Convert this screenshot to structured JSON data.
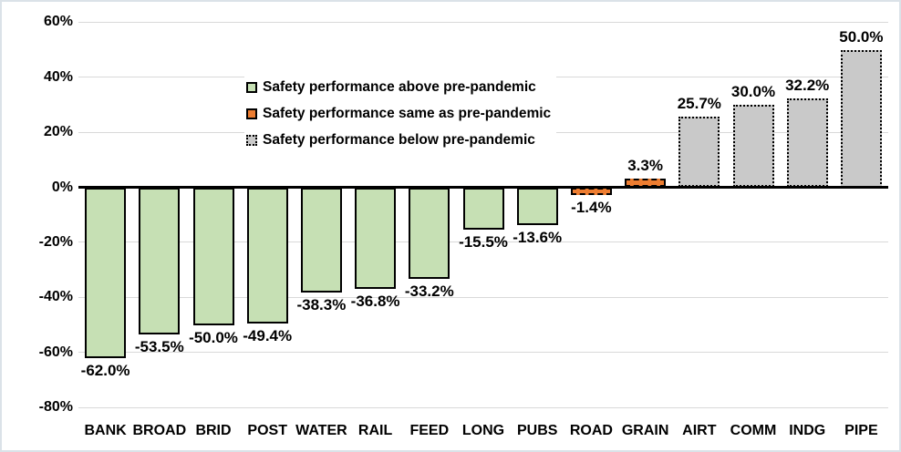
{
  "chart_data": {
    "type": "bar",
    "categories": [
      "BANK",
      "BROAD",
      "BRID",
      "POST",
      "WATER",
      "RAIL",
      "FEED",
      "LONG",
      "PUBS",
      "ROAD",
      "GRAIN",
      "AIRT",
      "COMM",
      "INDG",
      "PIPE"
    ],
    "values": [
      -62.0,
      -53.5,
      -50.0,
      -49.4,
      -38.3,
      -36.8,
      -33.2,
      -15.5,
      -13.6,
      -1.4,
      3.3,
      25.7,
      30.0,
      32.2,
      50.0
    ],
    "value_labels": [
      "-62.0%",
      "-53.5%",
      "-50.0%",
      "-49.4%",
      "-38.3%",
      "-36.8%",
      "-33.2%",
      "-15.5%",
      "-13.6%",
      "-1.4%",
      "3.3%",
      "25.7%",
      "30.0%",
      "32.2%",
      "50.0%"
    ],
    "groups": [
      "above",
      "above",
      "above",
      "above",
      "above",
      "above",
      "above",
      "above",
      "above",
      "same",
      "same",
      "below",
      "below",
      "below",
      "below"
    ],
    "series_styles": {
      "above": {
        "fill": "#c6e0b4",
        "border_style": "solid",
        "border_color": "#000000"
      },
      "same": {
        "fill": "#ed7d31",
        "border_style": "dashed",
        "border_color": "#000000"
      },
      "below": {
        "fill": "#c9c9c9",
        "border_style": "dotted",
        "border_color": "#000000"
      }
    },
    "y_axis": {
      "range": [
        -80,
        60
      ],
      "grid": true,
      "gridline_color": "#d9d9d9",
      "axis_color": "#000000",
      "ticks": [
        {
          "label": "60%",
          "value": 60
        },
        {
          "label": "40%",
          "value": 40
        },
        {
          "label": "20%",
          "value": 20
        },
        {
          "label": "0%",
          "value": 0
        },
        {
          "label": "-20%",
          "value": -20
        },
        {
          "label": "-40%",
          "value": -40
        },
        {
          "label": "-60%",
          "value": -60
        },
        {
          "label": "-80%",
          "value": -80
        }
      ]
    },
    "legend": [
      {
        "label": "Safety performance above pre-pandemic",
        "fill": "#c6e0b4",
        "border_style": "solid",
        "border_color": "#000000"
      },
      {
        "label": "Safety performance same as pre-pandemic",
        "fill": "#ed7d31",
        "border_style": "dashed",
        "border_color": "#000000"
      },
      {
        "label": "Safety performance below pre-pandemic",
        "fill": "#c9c9c9",
        "border_style": "dotted",
        "border_color": "#000000"
      }
    ],
    "legend_position": "upper-center-left"
  }
}
